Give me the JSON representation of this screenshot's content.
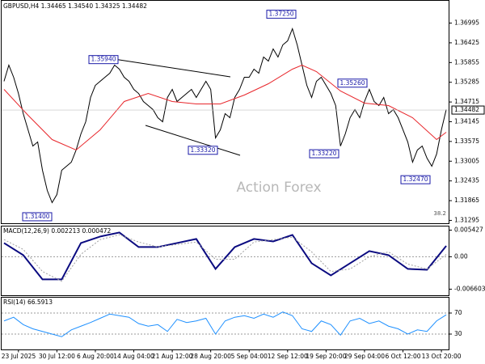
{
  "chart_data": [
    {
      "type": "line",
      "title": "GBPUSD,H4  1.34465 1.34540 1.34325 1.34482",
      "xlim": [
        -0.5,
        92.5
      ],
      "ylim": [
        1.312,
        1.3765
      ],
      "yticks": [
        1.36995,
        1.36425,
        1.35855,
        1.35285,
        1.34715,
        1.34145,
        1.33575,
        1.33005,
        1.32435,
        1.31865,
        1.31295
      ],
      "series": [
        {
          "color": "#000000",
          "line_style": "solid",
          "values": [
            1.35313,
            1.3578,
            1.3543,
            1.34962,
            1.34378,
            1.33911,
            1.33443,
            1.3356,
            1.32742,
            1.32158,
            1.31807,
            1.32041,
            1.32742,
            1.32859,
            1.32976,
            1.33327,
            1.33794,
            1.34144,
            1.34846,
            1.35196,
            1.35313,
            1.3543,
            1.35547,
            1.3578,
            1.35664,
            1.3543,
            1.35313,
            1.35079,
            1.34962,
            1.34729,
            1.34612,
            1.34495,
            1.34261,
            1.34144,
            1.34846,
            1.35079,
            1.34729,
            1.34846,
            1.34962,
            1.35079,
            1.34846,
            1.35079,
            1.35313,
            1.35079,
            1.33677,
            1.33911,
            1.34378,
            1.34261,
            1.34846,
            1.35079,
            1.3543,
            1.3543,
            1.35664,
            1.35547,
            1.36014,
            1.35897,
            1.36248,
            1.36014,
            1.36365,
            1.36481,
            1.36832,
            1.36365,
            1.3578,
            1.35196,
            1.34846,
            1.35313,
            1.3543,
            1.35196,
            1.34962,
            1.34612,
            1.33443,
            1.33794,
            1.34261,
            1.34495,
            1.34261,
            1.34729,
            1.35079,
            1.34729,
            1.34612,
            1.34846,
            1.34378,
            1.34495,
            1.34261,
            1.33911,
            1.3356,
            1.32976,
            1.33327,
            1.33443,
            1.33093,
            1.32859,
            1.3321,
            1.33911,
            1.34495
          ]
        },
        {
          "color": "#e8262b",
          "line_style": "solid",
          "x": [
            0,
            5,
            10,
            15,
            20,
            25,
            30,
            35,
            40,
            45,
            50,
            55,
            60,
            62,
            65,
            70,
            75,
            80,
            85,
            90,
            92
          ],
          "values": [
            1.35079,
            1.34331,
            1.3363,
            1.33327,
            1.33911,
            1.34729,
            1.34962,
            1.34729,
            1.34659,
            1.34659,
            1.34916,
            1.35243,
            1.35664,
            1.3578,
            1.35593,
            1.35033,
            1.34682,
            1.34612,
            1.34261,
            1.3363,
            1.33841
          ]
        }
      ],
      "annotations": [
        {
          "value": 1.3594,
          "label": "1.35940"
        },
        {
          "value": 1.3725,
          "label": "1.37250"
        },
        {
          "value": 1.3526,
          "label": "1.35260"
        },
        {
          "value": 1.3332,
          "label": "1.33320"
        },
        {
          "value": 1.3322,
          "label": "1.33220"
        },
        {
          "value": 1.3247,
          "label": "1.32470"
        },
        {
          "value": 1.314,
          "label": "1.31400"
        }
      ],
      "last_price": 1.34482,
      "fib_label": 38.2,
      "watermark": "Action Forex"
    },
    {
      "type": "line",
      "title": "MACD(12,26,9) 0.002213 0.000472",
      "xlim": [
        -0.5,
        92.5
      ],
      "ylim": [
        -0.00792,
        0.00625
      ],
      "yticks": [
        0.005427,
        {
          "value": 0,
          "label": "0.00"
        },
        -0.006603
      ],
      "levels": [
        0
      ],
      "series": [
        {
          "color": "#0a0a80",
          "line_style": "bold",
          "x": [
            0,
            4,
            8,
            12,
            16,
            20,
            24,
            28,
            32,
            36,
            40,
            44,
            48,
            52,
            56,
            60,
            64,
            68,
            72,
            76,
            80,
            84,
            88,
            92
          ],
          "values": [
            0.0028,
            0.00033,
            -0.00461,
            -0.00461,
            0.0028,
            0.00412,
            0.00494,
            0.00198,
            0.00198,
            0.0028,
            0.00363,
            -0.00247,
            0.00198,
            0.00363,
            0.00313,
            0.00445,
            -0.00132,
            -0.00379,
            -0.00132,
            0.00115,
            0.00033,
            -0.00247,
            -0.00264,
            0.002213
          ]
        },
        {
          "color": "#a0a0a0",
          "line_style": "dotted",
          "x": [
            0,
            4,
            8,
            12,
            16,
            20,
            24,
            28,
            32,
            36,
            40,
            44,
            48,
            52,
            56,
            60,
            64,
            68,
            72,
            76,
            80,
            84,
            88,
            92
          ],
          "values": [
            0.0035,
            0.0015,
            -0.003,
            -0.005,
            0.0005,
            0.0035,
            0.0045,
            0.003,
            0.002,
            0.0025,
            0.003,
            -0.0005,
            -0.0005,
            0.003,
            0.0035,
            0.004,
            0.001,
            -0.003,
            -0.0025,
            0,
            0.001,
            -0.0015,
            -0.0025,
            0.000472
          ]
        }
      ]
    },
    {
      "type": "line",
      "title": "RSI(14) 66.5913",
      "xlim": [
        -0.5,
        92.5
      ],
      "ylim": [
        0,
        100
      ],
      "yticks": [
        70,
        30
      ],
      "levels": [
        70,
        30
      ],
      "series": [
        {
          "color": "#1e90ff",
          "line_style": "solid",
          "x": [
            0,
            2,
            4,
            6,
            8,
            10,
            12,
            14,
            16,
            18,
            20,
            22,
            24,
            26,
            28,
            30,
            32,
            34,
            36,
            38,
            40,
            42,
            44,
            46,
            48,
            50,
            52,
            54,
            56,
            58,
            60,
            62,
            64,
            66,
            68,
            70,
            72,
            74,
            76,
            78,
            80,
            82,
            84,
            86,
            88,
            90,
            92
          ],
          "values": [
            55,
            62,
            48,
            40,
            35,
            30,
            25,
            38,
            45,
            52,
            60,
            68,
            65,
            62,
            50,
            45,
            48,
            35,
            58,
            52,
            55,
            60,
            30,
            55,
            62,
            65,
            60,
            68,
            62,
            72,
            65,
            40,
            35,
            55,
            48,
            28,
            55,
            60,
            50,
            55,
            45,
            40,
            30,
            38,
            35,
            55,
            66.5913
          ]
        }
      ],
      "xticks": [
        {
          "value": 3,
          "label": "23 Jul 2025"
        },
        {
          "value": 11,
          "label": "30 Jul 12:00"
        },
        {
          "value": 19,
          "label": "6 Aug 20:00"
        },
        {
          "value": 27,
          "label": "14 Aug 04:00"
        },
        {
          "value": 35,
          "label": "21 Aug 12:00"
        },
        {
          "value": 43,
          "label": "28 Aug 20:00"
        },
        {
          "value": 51,
          "label": "5 Sep 04:00"
        },
        {
          "value": 59,
          "label": "12 Sep 12:00"
        },
        {
          "value": 67,
          "label": "19 Sep 20:00"
        },
        {
          "value": 75,
          "label": "29 Sep 04:00"
        },
        {
          "value": 83,
          "label": "6 Oct 12:00"
        },
        {
          "value": 91,
          "label": "13 Oct 20:00"
        }
      ]
    }
  ]
}
